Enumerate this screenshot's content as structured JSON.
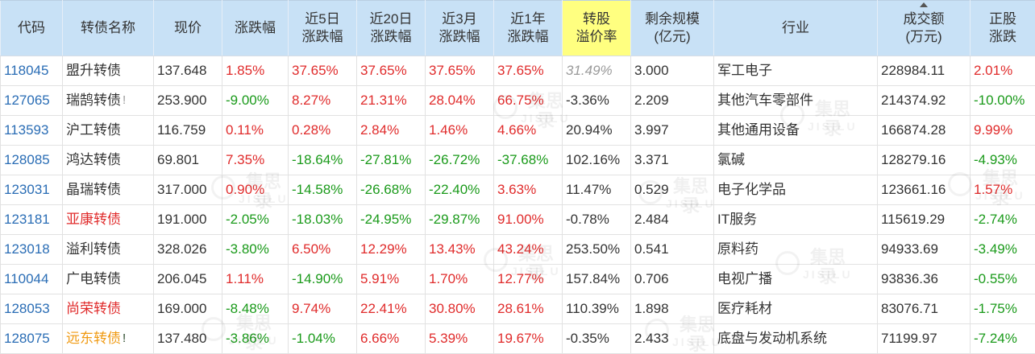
{
  "colors": {
    "header_bg": "#c8e1f6",
    "highlight": "#ffff80",
    "link": "#2a6db5",
    "up": "#e02b2b",
    "down": "#1a9a1a",
    "name_red": "#e02b2b",
    "name_orange": "#f09a12",
    "muted": "#9a9a9a"
  },
  "watermark": {
    "cn": "集思录",
    "en": "JISILU"
  },
  "table": {
    "headers": [
      {
        "key": "code",
        "lines": [
          "代码"
        ]
      },
      {
        "key": "name",
        "lines": [
          "转债名称"
        ]
      },
      {
        "key": "price",
        "lines": [
          "现价"
        ]
      },
      {
        "key": "change",
        "lines": [
          "涨跌幅"
        ]
      },
      {
        "key": "change_5d",
        "lines": [
          "近5日",
          "涨跌幅"
        ]
      },
      {
        "key": "change_20d",
        "lines": [
          "近20日",
          "涨跌幅"
        ]
      },
      {
        "key": "change_3m",
        "lines": [
          "近3月",
          "涨跌幅"
        ]
      },
      {
        "key": "change_1y",
        "lines": [
          "近1年",
          "涨跌幅"
        ]
      },
      {
        "key": "premium",
        "lines": [
          "转股",
          "溢价率"
        ],
        "highlight": true
      },
      {
        "key": "remaining",
        "lines": [
          "剩余规模",
          "(亿元)"
        ]
      },
      {
        "key": "industry",
        "lines": [
          "行业"
        ]
      },
      {
        "key": "volume",
        "lines": [
          "成交额",
          "(万元)"
        ],
        "sort_icon": "sort-up-icon"
      },
      {
        "key": "stock_change",
        "lines": [
          "正股",
          "涨跌"
        ]
      }
    ],
    "rows": [
      {
        "code": "118045",
        "name": "盟升转债",
        "name_tone": "default",
        "flag": null,
        "price": "137.648",
        "change": "1.85%",
        "change_5d": "37.65%",
        "change_20d": "37.65%",
        "change_3m": "37.65%",
        "change_1y": "37.65%",
        "premium": "31.49%",
        "premium_muted": true,
        "remaining": "3.000",
        "industry": "军工电子",
        "volume": "228984.11",
        "stock_change": "2.01%"
      },
      {
        "code": "127065",
        "name": "瑞鹄转债",
        "name_tone": "default",
        "flag": {
          "text": "!",
          "tone": "muted"
        },
        "price": "253.900",
        "change": "-9.00%",
        "change_5d": "8.27%",
        "change_20d": "21.31%",
        "change_3m": "28.04%",
        "change_1y": "66.75%",
        "premium": "-3.36%",
        "premium_muted": false,
        "remaining": "2.209",
        "industry": "其他汽车零部件",
        "volume": "214374.92",
        "stock_change": "-10.00%"
      },
      {
        "code": "113593",
        "name": "沪工转债",
        "name_tone": "default",
        "flag": null,
        "price": "116.759",
        "change": "0.11%",
        "change_5d": "0.28%",
        "change_20d": "2.84%",
        "change_3m": "1.46%",
        "change_1y": "4.66%",
        "premium": "20.94%",
        "premium_muted": false,
        "remaining": "3.997",
        "industry": "其他通用设备",
        "volume": "166874.28",
        "stock_change": "9.99%"
      },
      {
        "code": "128085",
        "name": "鸿达转债",
        "name_tone": "default",
        "flag": null,
        "price": "69.801",
        "change": "7.35%",
        "change_5d": "-18.64%",
        "change_20d": "-27.81%",
        "change_3m": "-26.72%",
        "change_1y": "-37.68%",
        "premium": "102.16%",
        "premium_muted": false,
        "remaining": "3.371",
        "industry": "氯碱",
        "volume": "128279.16",
        "stock_change": "-4.93%"
      },
      {
        "code": "123031",
        "name": "晶瑞转债",
        "name_tone": "default",
        "flag": null,
        "price": "317.000",
        "change": "0.90%",
        "change_5d": "-14.58%",
        "change_20d": "-26.68%",
        "change_3m": "-22.40%",
        "change_1y": "3.63%",
        "premium": "11.47%",
        "premium_muted": false,
        "remaining": "0.529",
        "industry": "电子化学品",
        "volume": "123661.16",
        "stock_change": "1.57%"
      },
      {
        "code": "123181",
        "name": "亚康转债",
        "name_tone": "red",
        "flag": null,
        "price": "191.000",
        "change": "-2.05%",
        "change_5d": "-18.03%",
        "change_20d": "-24.95%",
        "change_3m": "-29.87%",
        "change_1y": "91.00%",
        "premium": "-0.78%",
        "premium_muted": false,
        "remaining": "2.484",
        "industry": "IT服务",
        "volume": "115619.29",
        "stock_change": "-2.74%"
      },
      {
        "code": "123018",
        "name": "溢利转债",
        "name_tone": "default",
        "flag": null,
        "price": "328.026",
        "change": "-3.80%",
        "change_5d": "6.50%",
        "change_20d": "12.29%",
        "change_3m": "13.43%",
        "change_1y": "43.24%",
        "premium": "253.50%",
        "premium_muted": false,
        "remaining": "0.541",
        "industry": "原料药",
        "volume": "94933.69",
        "stock_change": "-3.49%"
      },
      {
        "code": "110044",
        "name": "广电转债",
        "name_tone": "default",
        "flag": null,
        "price": "206.045",
        "change": "1.11%",
        "change_5d": "-14.90%",
        "change_20d": "5.91%",
        "change_3m": "1.70%",
        "change_1y": "12.77%",
        "premium": "157.84%",
        "premium_muted": false,
        "remaining": "0.706",
        "industry": "电视广播",
        "volume": "93836.36",
        "stock_change": "-0.55%"
      },
      {
        "code": "128053",
        "name": "尚荣转债",
        "name_tone": "red",
        "flag": null,
        "price": "169.000",
        "change": "-8.48%",
        "change_5d": "9.74%",
        "change_20d": "22.41%",
        "change_3m": "30.80%",
        "change_1y": "28.61%",
        "premium": "110.39%",
        "premium_muted": false,
        "remaining": "1.898",
        "industry": "医疗耗材",
        "volume": "83076.71",
        "stock_change": "-1.75%"
      },
      {
        "code": "128075",
        "name": "远东转债",
        "name_tone": "orange",
        "flag": {
          "text": "!",
          "tone": "dark"
        },
        "price": "137.480",
        "change": "-3.86%",
        "change_5d": "-1.04%",
        "change_20d": "6.66%",
        "change_3m": "5.39%",
        "change_1y": "19.67%",
        "premium": "-0.35%",
        "premium_muted": false,
        "remaining": "2.433",
        "industry": "底盘与发动机系统",
        "volume": "71199.97",
        "stock_change": "-7.24%"
      }
    ]
  }
}
